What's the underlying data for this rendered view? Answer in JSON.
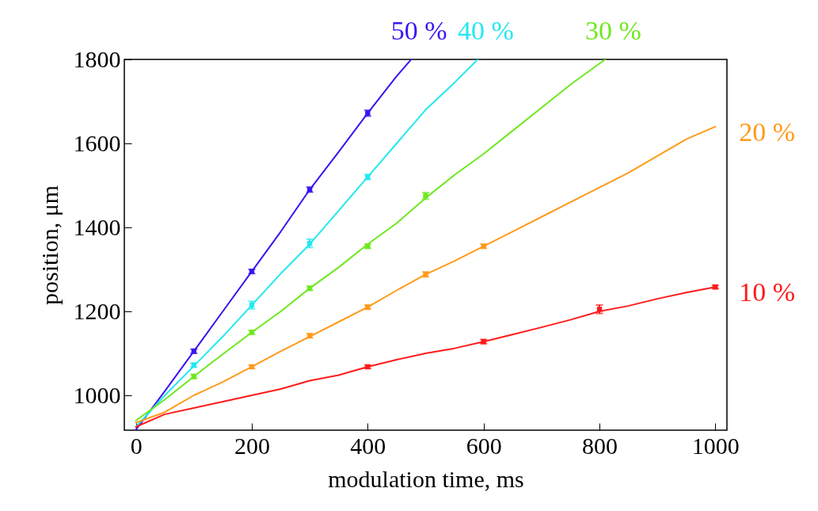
{
  "chart_data": {
    "type": "line",
    "xlabel": "modulation time, ms",
    "ylabel": "position, μm",
    "xlim": [
      -20,
      1020
    ],
    "ylim": [
      917,
      1800
    ],
    "xticks": [
      0,
      200,
      400,
      600,
      800,
      1000
    ],
    "yticks": [
      1000,
      1200,
      1400,
      1600,
      1800
    ],
    "grid": false,
    "line_style": "solid",
    "series": [
      {
        "name": "50 %",
        "color": "#3a14f0",
        "x": [
          0,
          50,
          100,
          150,
          200,
          250,
          300,
          350,
          400,
          450,
          475
        ],
        "values": [
          918,
          1010,
          1105,
          1200,
          1295,
          1390,
          1490,
          1580,
          1672,
          1760,
          1800
        ]
      },
      {
        "name": "40 %",
        "color": "#22e8f0",
        "x": [
          0,
          50,
          100,
          150,
          200,
          250,
          300,
          350,
          400,
          450,
          500,
          550,
          590
        ],
        "values": [
          925,
          1000,
          1070,
          1140,
          1215,
          1290,
          1360,
          1440,
          1520,
          1600,
          1680,
          1745,
          1800
        ]
      },
      {
        "name": "30 %",
        "color": "#6ee81e",
        "x": [
          0,
          50,
          100,
          150,
          200,
          250,
          300,
          350,
          400,
          450,
          500,
          550,
          600,
          650,
          700,
          750,
          800,
          810
        ],
        "values": [
          940,
          990,
          1045,
          1098,
          1150,
          1200,
          1255,
          1305,
          1360,
          1410,
          1470,
          1525,
          1575,
          1630,
          1685,
          1740,
          1790,
          1800
        ]
      },
      {
        "name": "20 %",
        "color": "#ff9a1a",
        "x": [
          0,
          50,
          100,
          150,
          200,
          250,
          300,
          350,
          400,
          450,
          500,
          550,
          600,
          650,
          700,
          750,
          800,
          850,
          900,
          950,
          1000
        ],
        "values": [
          935,
          960,
          1000,
          1032,
          1068,
          1105,
          1140,
          1175,
          1210,
          1250,
          1288,
          1320,
          1355,
          1390,
          1425,
          1460,
          1495,
          1530,
          1570,
          1610,
          1640
        ]
      },
      {
        "name": "10 %",
        "color": "#ff1a1a",
        "x": [
          0,
          50,
          100,
          150,
          200,
          250,
          300,
          350,
          400,
          450,
          500,
          550,
          600,
          650,
          700,
          750,
          800,
          850,
          900,
          950,
          1000
        ],
        "values": [
          925,
          955,
          970,
          985,
          1000,
          1015,
          1035,
          1048,
          1068,
          1085,
          1100,
          1112,
          1128,
          1145,
          1162,
          1180,
          1200,
          1213,
          1230,
          1245,
          1258
        ]
      },
      {
        "type": "scatter",
        "marker": "square",
        "color": "#3a14f0",
        "x": [
          100,
          200,
          300,
          400
        ],
        "values": [
          1105,
          1295,
          1490,
          1672
        ],
        "errors": [
          5,
          5,
          6,
          7
        ]
      },
      {
        "type": "scatter",
        "marker": "square",
        "color": "#22e8f0",
        "x": [
          100,
          200,
          300,
          400
        ],
        "values": [
          1072,
          1215,
          1362,
          1520
        ],
        "errors": [
          5,
          9,
          10,
          6
        ]
      },
      {
        "type": "scatter",
        "marker": "square",
        "color": "#6ee81e",
        "x": [
          100,
          200,
          300,
          400,
          500
        ],
        "values": [
          1045,
          1150,
          1255,
          1355,
          1475
        ],
        "errors": [
          5,
          5,
          5,
          5,
          8
        ]
      },
      {
        "type": "scatter",
        "marker": "square",
        "color": "#ff9a1a",
        "x": [
          200,
          300,
          400,
          500,
          600
        ],
        "values": [
          1068,
          1142,
          1210,
          1288,
          1355
        ],
        "errors": [
          4,
          5,
          5,
          6,
          5
        ]
      },
      {
        "type": "scatter",
        "marker": "square",
        "color": "#ff1a1a",
        "x": [
          400,
          600,
          800,
          1000
        ],
        "values": [
          1068,
          1128,
          1205,
          1258
        ],
        "errors": [
          4,
          5,
          10,
          4
        ]
      }
    ]
  }
}
